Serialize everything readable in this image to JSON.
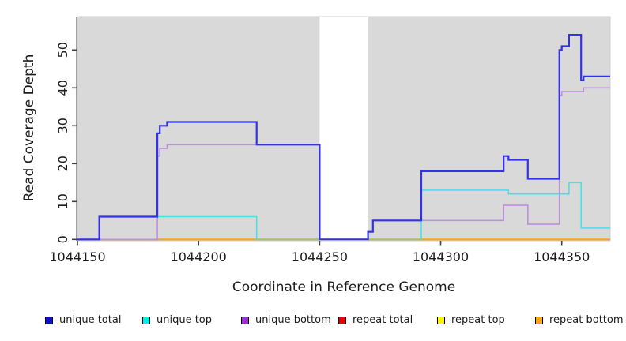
{
  "figure": {
    "x_axis_label": "Coordinate in Reference Genome",
    "y_axis_label": "Read Coverage Depth"
  },
  "legend": {
    "items": [
      {
        "label": "unique total",
        "color": "#0d0dcc"
      },
      {
        "label": "unique top",
        "color": "#00eded"
      },
      {
        "label": "unique bottom",
        "color": "#9a2fd4"
      },
      {
        "label": "repeat total",
        "color": "#e60000"
      },
      {
        "label": "repeat top",
        "color": "#fbf500"
      },
      {
        "label": "repeat bottom",
        "color": "#ffa216"
      }
    ],
    "swatch_border": "#000000"
  },
  "chart_data": {
    "type": "line",
    "subtype": "step",
    "title": "",
    "xlabel": "Coordinate in Reference Genome",
    "ylabel": "Read Coverage Depth",
    "xlim": [
      1044150,
      1044370
    ],
    "ylim": [
      0,
      58
    ],
    "x_ticks": [
      1044150,
      1044200,
      1044250,
      1044300,
      1044350
    ],
    "x_tick_labels": [
      "1044150",
      "1044200",
      "1044250",
      "1044300",
      "1044350"
    ],
    "y_ticks": [
      0,
      10,
      20,
      30,
      40,
      50
    ],
    "y_tick_labels": [
      "0",
      "10",
      "20",
      "30",
      "40",
      "50"
    ],
    "grid": false,
    "legend_position": "bottom",
    "panel_color": "#d9d9d9",
    "panel_edge_color": "#c8c8c8",
    "axis_color": "#404040",
    "gap_region": {
      "x0": 1044250,
      "x1": 1044270,
      "color": "#ffffff"
    },
    "series": [
      {
        "name": "repeat total",
        "color": "#e60000",
        "width": 1.6,
        "points": [
          [
            1044150,
            0
          ]
        ]
      },
      {
        "name": "repeat top",
        "color": "#fbf500",
        "width": 1.6,
        "points": [
          [
            1044150,
            0
          ]
        ]
      },
      {
        "name": "repeat bottom",
        "color": "#ffa216",
        "width": 2,
        "points": [
          [
            1044183,
            0
          ]
        ]
      },
      {
        "name": "unique bottom",
        "color": "#bd8fdc",
        "width": 1.6,
        "points": [
          [
            1044150,
            0
          ],
          [
            1044183,
            22
          ],
          [
            1044184,
            24
          ],
          [
            1044187,
            25
          ],
          [
            1044250,
            0
          ],
          [
            1044270,
            2
          ],
          [
            1044272,
            5
          ],
          [
            1044326,
            9
          ],
          [
            1044336,
            4
          ],
          [
            1044349,
            38
          ],
          [
            1044350,
            39
          ],
          [
            1044359,
            40
          ]
        ]
      },
      {
        "name": "unique top",
        "color": "#48e1e8",
        "width": 1.6,
        "points": [
          [
            1044150,
            0
          ],
          [
            1044159,
            6
          ],
          [
            1044224,
            0
          ],
          [
            1044292,
            13
          ],
          [
            1044328,
            12
          ],
          [
            1044353,
            15
          ],
          [
            1044358,
            3
          ]
        ]
      },
      {
        "name": "unique total",
        "color": "#3232e8",
        "width": 2.2,
        "points": [
          [
            1044150,
            0
          ],
          [
            1044159,
            6
          ],
          [
            1044183,
            28
          ],
          [
            1044184,
            30
          ],
          [
            1044187,
            31
          ],
          [
            1044224,
            25
          ],
          [
            1044250,
            0
          ],
          [
            1044270,
            2
          ],
          [
            1044272,
            5
          ],
          [
            1044292,
            18
          ],
          [
            1044326,
            22
          ],
          [
            1044328,
            21
          ],
          [
            1044336,
            16
          ],
          [
            1044349,
            50
          ],
          [
            1044350,
            51
          ],
          [
            1044353,
            54
          ],
          [
            1044358,
            42
          ],
          [
            1044359,
            43
          ]
        ]
      }
    ],
    "overlap_tints": [
      {
        "name": "unique-bottom-at-zero-blend",
        "color": "#b8447a",
        "width": 1.6,
        "x0": 1044159,
        "x1": 1044183,
        "value": 0,
        "after": "repeat bottom"
      },
      {
        "name": "unique-top-at-zero-blend",
        "color": "#8cc88c",
        "width": 1.6,
        "x0": 1044224,
        "x1": 1044292,
        "value": 0,
        "after": "unique top"
      }
    ]
  }
}
